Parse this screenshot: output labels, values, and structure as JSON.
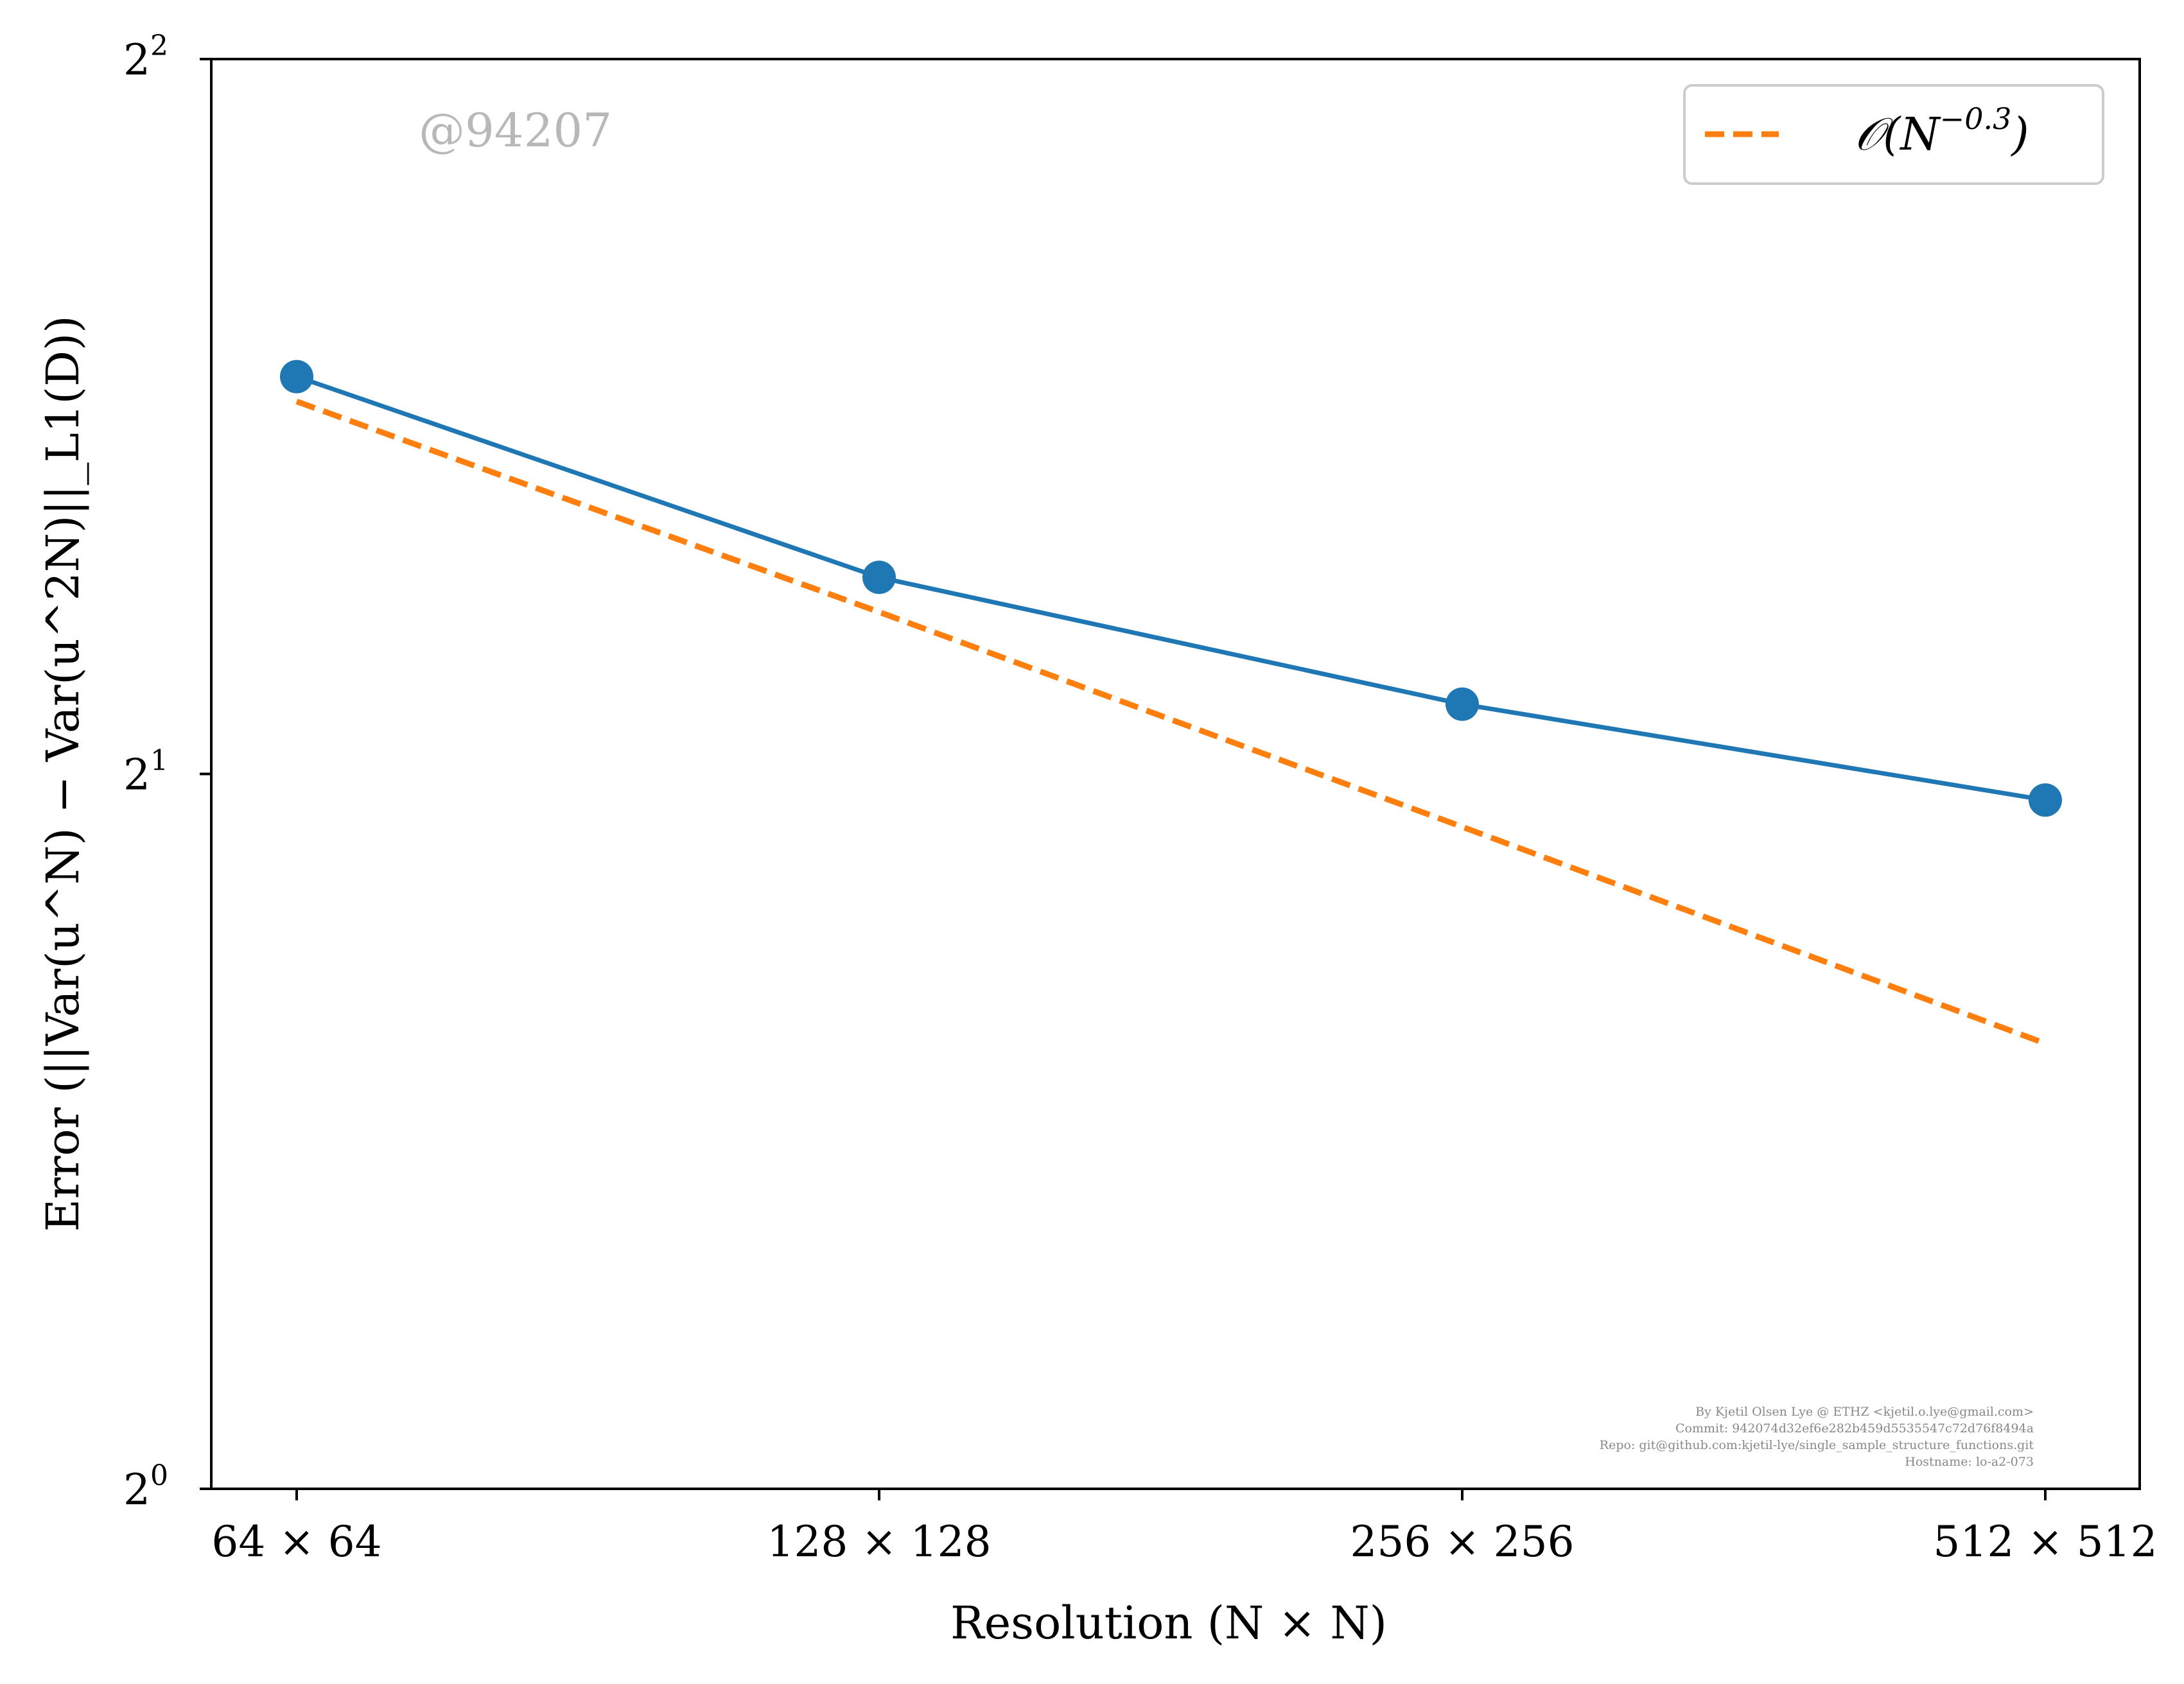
{
  "colors": {
    "series": "#1f77b4",
    "fit": "#ff7f0e",
    "axes": "#000000",
    "watermark": "#b8b8b8",
    "footer": "#888888"
  },
  "watermark": "@94207",
  "footer_lines": [
    "By Kjetil Olsen Lye @ ETHZ <kjetil.o.lye@gmail.com>",
    "Commit: 942074d32ef6e282b459d5535547c72d76f8494a",
    "Repo: git@github.com:kjetil-lye/single_sample_structure_functions.git",
    "Hostname: lo-a2-073"
  ],
  "chart_data": {
    "type": "line",
    "title": "",
    "xlabel": "Resolution (N × N)",
    "ylabel": "Error (||Var(u^N) − Var(u^2N)||_L1(D))",
    "y_scale": "log2",
    "ylim": [
      1,
      4
    ],
    "categories": [
      "64 × 64",
      "128 × 128",
      "256 × 256",
      "512 × 512"
    ],
    "y_ticks": [
      {
        "base": "2",
        "exp": "0"
      },
      {
        "base": "2",
        "exp": "1"
      },
      {
        "base": "2",
        "exp": "2"
      }
    ],
    "y_tick_values": [
      1,
      2,
      4
    ],
    "series": [
      {
        "name": "",
        "style": "solid-marker",
        "color": "#1f77b4",
        "values": [
          2.94,
          2.42,
          2.14,
          1.95
        ]
      },
      {
        "name": "O(N^-0.3)",
        "style": "dashed",
        "color": "#ff7f0e",
        "values": [
          2.87,
          2.34,
          1.9,
          1.54
        ]
      }
    ],
    "legend": {
      "position": "top-right",
      "entries": [
        {
          "text_main": "𝒪(N",
          "text_sup": "−0.3",
          "text_close": ")"
        }
      ]
    },
    "grid": false
  }
}
